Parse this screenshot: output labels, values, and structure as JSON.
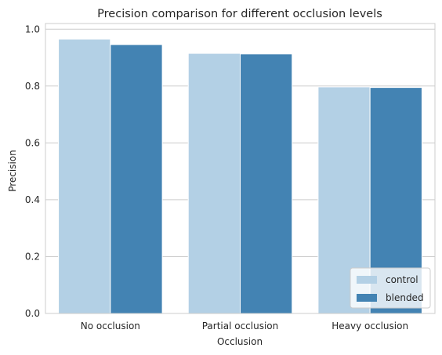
{
  "chart_data": {
    "type": "bar",
    "title": "Precision comparison for different occlusion levels",
    "xlabel": "Occlusion",
    "ylabel": "Precision",
    "categories": [
      "No occlusion",
      "Partial occlusion",
      "Heavy occlusion"
    ],
    "series": [
      {
        "name": "control",
        "values": [
          0.965,
          0.915,
          0.797
        ],
        "color": "#b3d0e5"
      },
      {
        "name": "blended",
        "values": [
          0.946,
          0.913,
          0.795
        ],
        "color": "#4383b3"
      }
    ],
    "ylim": [
      0,
      1.02
    ],
    "yticks": [
      "0.0",
      "0.2",
      "0.4",
      "0.6",
      "0.8",
      "1.0"
    ],
    "grid": true,
    "legend_position": "bottom-right"
  }
}
